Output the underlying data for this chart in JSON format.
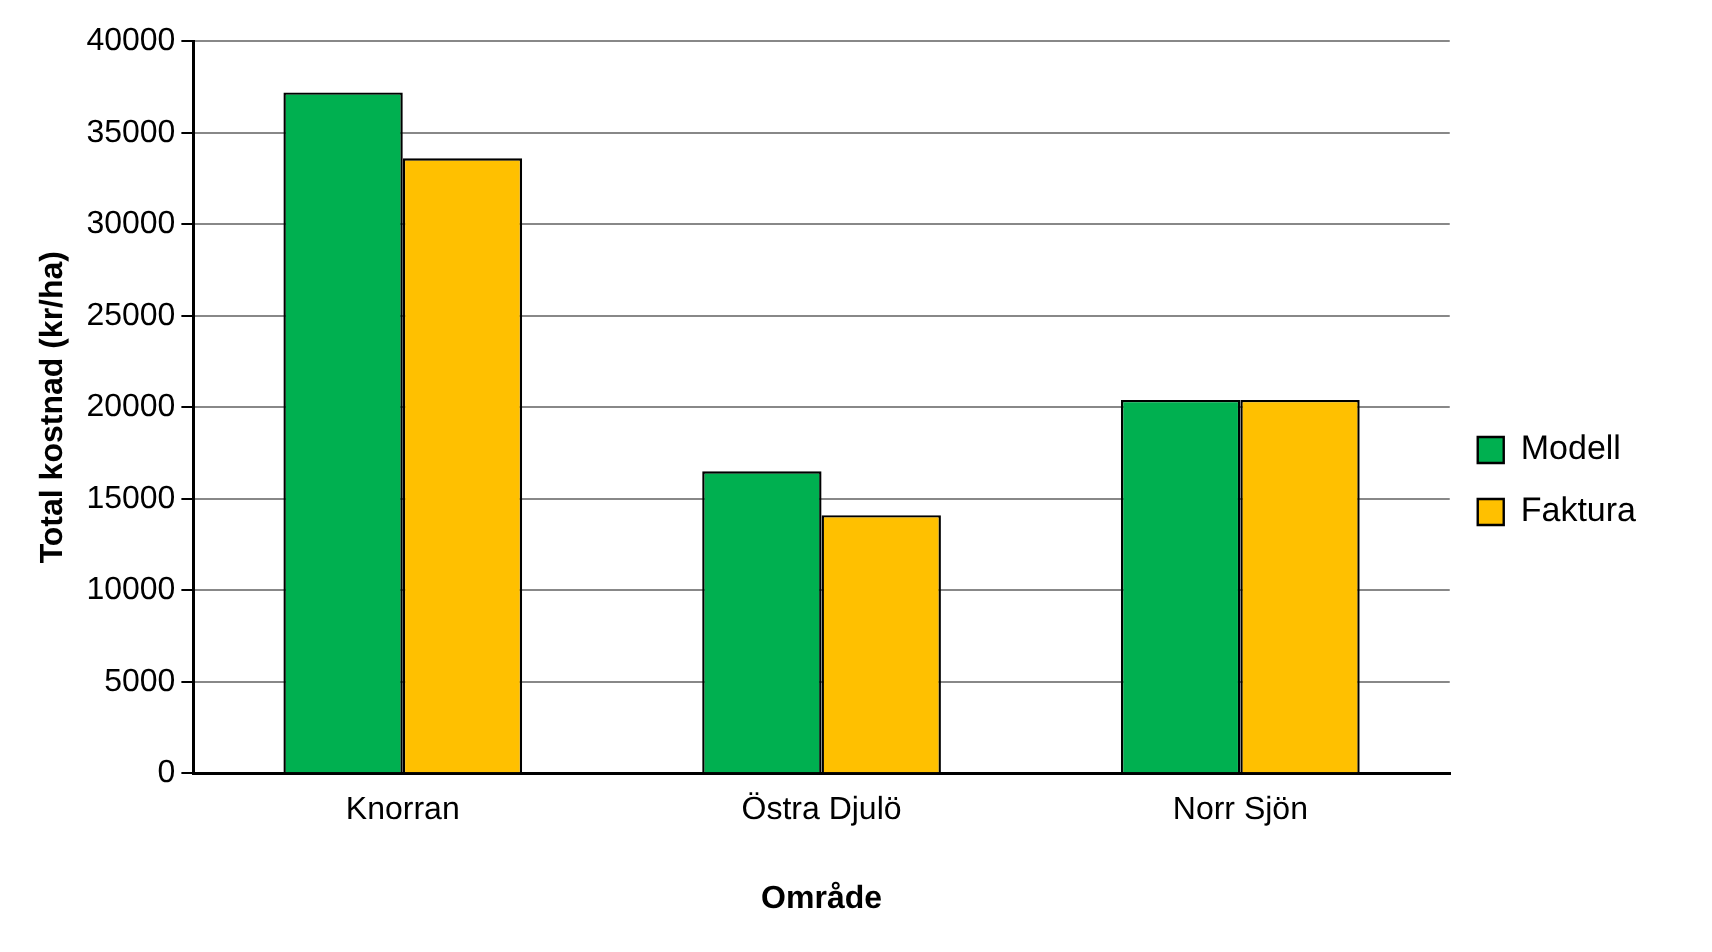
{
  "chart_data": {
    "type": "bar",
    "xlabel": "Område",
    "ylabel": "Total kostnad (kr/ha)",
    "categories": [
      "Knorran",
      "Östra Djulö",
      "Norr Sjön"
    ],
    "series": [
      {
        "name": "Modell",
        "color": "#00b050",
        "values": [
          37200,
          16500,
          20400
        ]
      },
      {
        "name": "Faktura",
        "color": "#ffc000",
        "values": [
          33600,
          14100,
          20400
        ]
      }
    ],
    "ylim": [
      0,
      40000
    ],
    "yticks": [
      0,
      5000,
      10000,
      15000,
      20000,
      25000,
      30000,
      35000,
      40000
    ],
    "grid": "y",
    "legend": "right"
  }
}
